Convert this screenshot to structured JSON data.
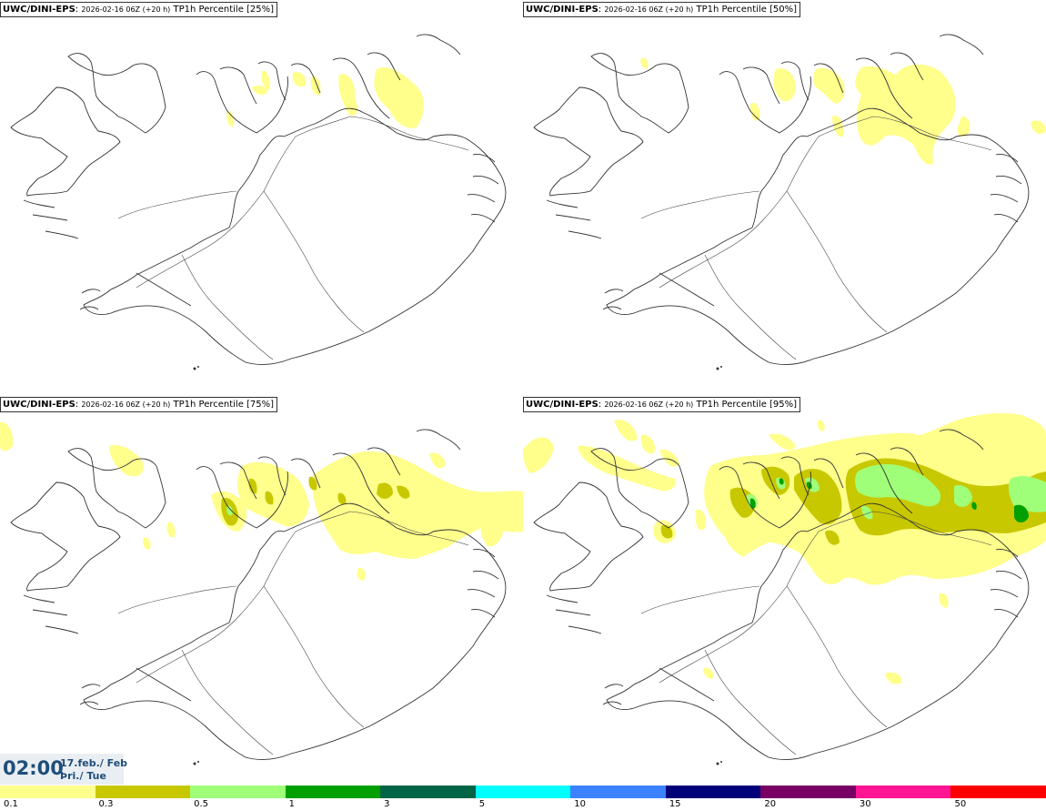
{
  "panels": [
    {
      "model": "UWC/DINI-EPS",
      "run": "2026-02-16 06Z (+20 h)",
      "field": "TP1h Percentile [25%]"
    },
    {
      "model": "UWC/DINI-EPS",
      "run": "2026-02-16 06Z (+20 h)",
      "field": "TP1h Percentile [50%]"
    },
    {
      "model": "UWC/DINI-EPS",
      "run": "2026-02-16 06Z (+20 h)",
      "field": "TP1h Percentile [75%]"
    },
    {
      "model": "UWC/DINI-EPS",
      "run": "2026-02-16 06Z (+20 h)",
      "field": "TP1h Percentile [95%]"
    }
  ],
  "valid_time": {
    "time": "02:00",
    "date": "17.feb./ Feb",
    "weekday": "Þri./ Tue"
  },
  "legend": {
    "labels": [
      "0.1",
      "0.3",
      "0.5",
      "1",
      "3",
      "5",
      "10",
      "15",
      "20",
      "30",
      "50"
    ],
    "colors": [
      "#ffff8c",
      "#c8c800",
      "#a0ff78",
      "#00a000",
      "#006446",
      "#00ffff",
      "#3c82ff",
      "#000078",
      "#780064",
      "#ff1493",
      "#ff0000"
    ]
  },
  "colors": {
    "light_yellow": "#ffff8c",
    "olive": "#c8c800",
    "light_green": "#a0ff78",
    "green": "#00a000",
    "coast": "#333333",
    "title_blue": "#1f4e79"
  }
}
